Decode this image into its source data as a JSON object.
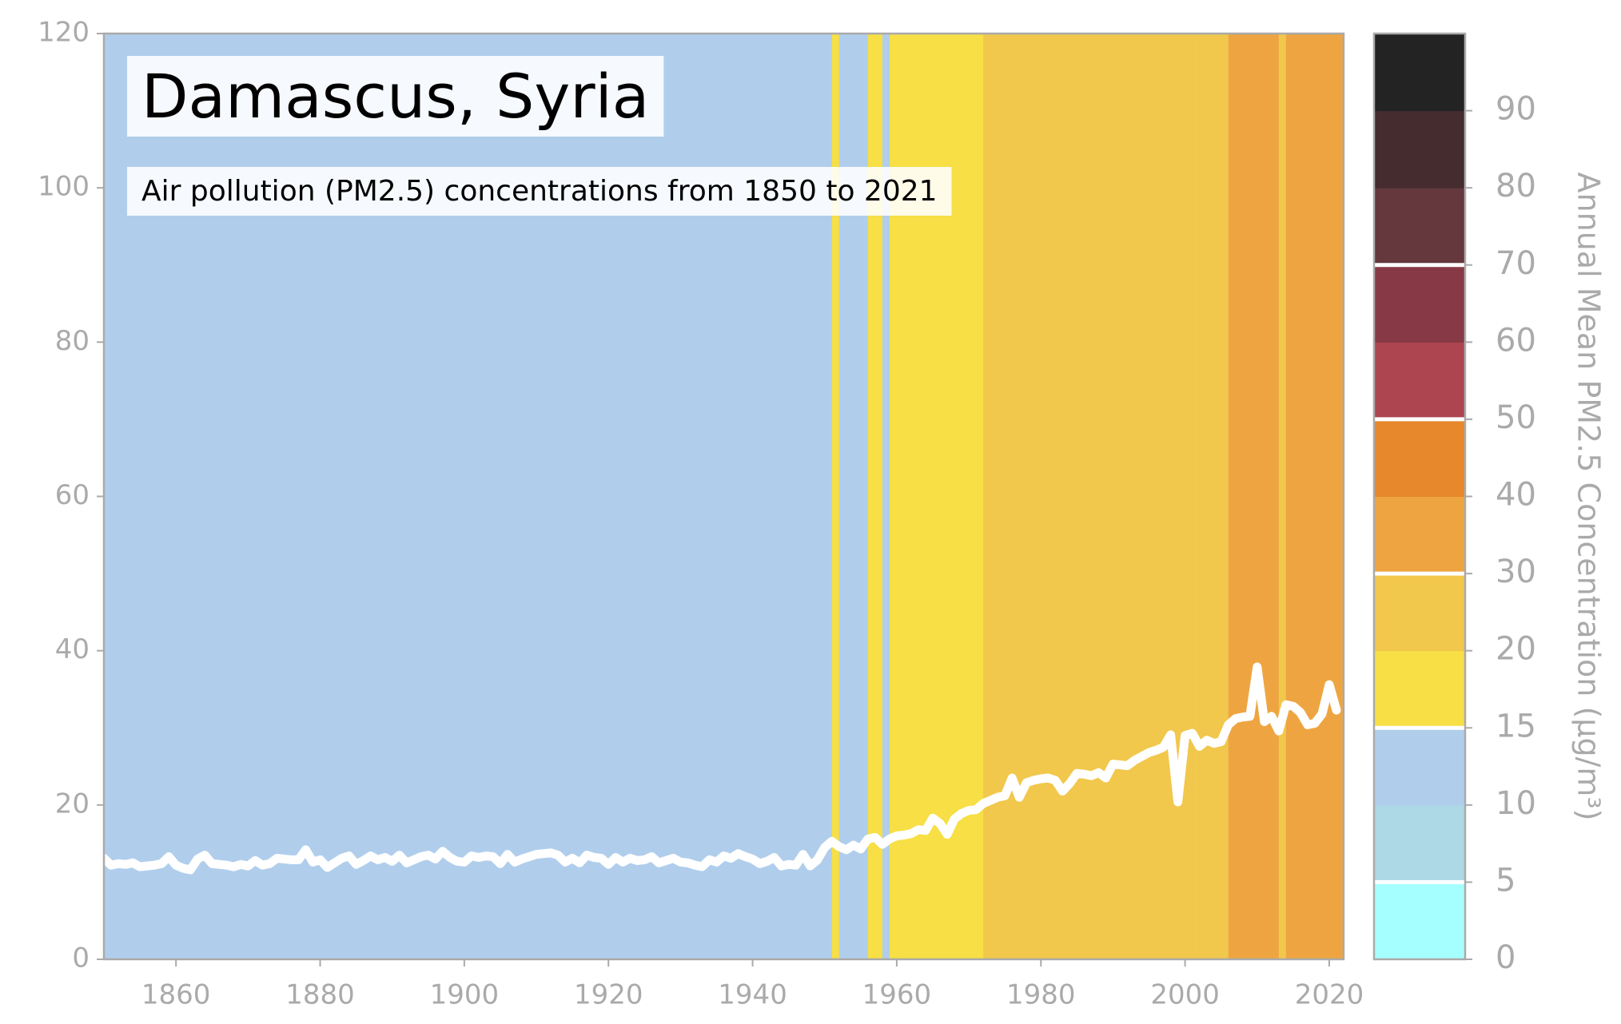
{
  "chart_data": {
    "type": "climate-stripes-line",
    "title": "Damascus, Syria",
    "subtitle": "Air pollution (PM2.5) concentrations from 1850 to 2021",
    "x": [
      1850,
      1851,
      1852,
      1853,
      1854,
      1855,
      1856,
      1857,
      1858,
      1859,
      1860,
      1861,
      1862,
      1863,
      1864,
      1865,
      1866,
      1867,
      1868,
      1869,
      1870,
      1871,
      1872,
      1873,
      1874,
      1875,
      1876,
      1877,
      1878,
      1879,
      1880,
      1881,
      1882,
      1883,
      1884,
      1885,
      1886,
      1887,
      1888,
      1889,
      1890,
      1891,
      1892,
      1893,
      1894,
      1895,
      1896,
      1897,
      1898,
      1899,
      1900,
      1901,
      1902,
      1903,
      1904,
      1905,
      1906,
      1907,
      1908,
      1909,
      1910,
      1911,
      1912,
      1913,
      1914,
      1915,
      1916,
      1917,
      1918,
      1919,
      1920,
      1921,
      1922,
      1923,
      1924,
      1925,
      1926,
      1927,
      1928,
      1929,
      1930,
      1931,
      1932,
      1933,
      1934,
      1935,
      1936,
      1937,
      1938,
      1939,
      1940,
      1941,
      1942,
      1943,
      1944,
      1945,
      1946,
      1947,
      1948,
      1949,
      1950,
      1951,
      1952,
      1953,
      1954,
      1955,
      1956,
      1957,
      1958,
      1959,
      1960,
      1961,
      1962,
      1963,
      1964,
      1965,
      1966,
      1967,
      1968,
      1969,
      1970,
      1971,
      1972,
      1973,
      1974,
      1975,
      1976,
      1977,
      1978,
      1979,
      1980,
      1981,
      1982,
      1983,
      1984,
      1985,
      1986,
      1987,
      1988,
      1989,
      1990,
      1991,
      1992,
      1993,
      1994,
      1995,
      1996,
      1997,
      1998,
      1999,
      2000,
      2001,
      2002,
      2003,
      2004,
      2005,
      2006,
      2007,
      2008,
      2009,
      2010,
      2011,
      2012,
      2013,
      2014,
      2015,
      2016,
      2017,
      2018,
      2019,
      2020,
      2021
    ],
    "values": [
      13.1,
      12.2,
      12.4,
      12.3,
      12.5,
      12.0,
      12.1,
      12.2,
      12.4,
      13.3,
      12.2,
      11.8,
      11.6,
      13.0,
      13.5,
      12.4,
      12.3,
      12.2,
      12.0,
      12.3,
      12.1,
      12.8,
      12.2,
      12.4,
      13.1,
      13.0,
      12.9,
      12.9,
      14.2,
      12.6,
      12.9,
      11.9,
      12.5,
      13.1,
      13.4,
      12.3,
      12.8,
      13.4,
      12.9,
      13.2,
      12.7,
      13.5,
      12.5,
      12.9,
      13.3,
      13.5,
      13.0,
      14.0,
      13.2,
      12.7,
      12.6,
      13.4,
      13.2,
      13.4,
      13.3,
      12.4,
      13.6,
      12.6,
      13.0,
      13.3,
      13.6,
      13.7,
      13.8,
      13.5,
      12.6,
      13.1,
      12.5,
      13.5,
      13.2,
      13.1,
      12.3,
      13.2,
      12.6,
      13.1,
      12.8,
      12.9,
      13.3,
      12.5,
      12.8,
      13.1,
      12.6,
      12.5,
      12.2,
      12.0,
      12.9,
      12.6,
      13.4,
      13.1,
      13.7,
      13.3,
      13.0,
      12.4,
      12.7,
      13.2,
      12.1,
      12.3,
      12.2,
      13.6,
      12.1,
      12.9,
      14.5,
      15.3,
      14.6,
      14.2,
      14.8,
      14.3,
      15.6,
      15.8,
      14.9,
      15.6,
      16.0,
      16.1,
      16.3,
      16.8,
      16.7,
      18.3,
      17.6,
      16.2,
      18.2,
      18.9,
      19.3,
      19.4,
      20.2,
      20.6,
      21.0,
      21.2,
      23.5,
      21.0,
      22.9,
      23.2,
      23.4,
      23.5,
      23.2,
      21.8,
      22.8,
      24.1,
      24.0,
      23.8,
      24.2,
      23.5,
      25.3,
      25.2,
      25.1,
      25.8,
      26.3,
      26.8,
      27.1,
      27.5,
      29.1,
      20.4,
      29.0,
      29.3,
      27.6,
      28.4,
      28.0,
      28.2,
      30.4,
      31.2,
      31.4,
      31.5,
      37.9,
      30.8,
      31.5,
      29.6,
      33.0,
      32.8,
      32.0,
      30.4,
      30.6,
      31.8,
      35.6,
      32.3
    ],
    "color": "#ffffff",
    "xlim": [
      1850,
      2022
    ],
    "xticks": [
      1860,
      1880,
      1900,
      1920,
      1940,
      1960,
      1980,
      2000,
      2020
    ],
    "ylim": [
      0,
      120
    ],
    "yticks": [
      0,
      20,
      40,
      60,
      80,
      100,
      120
    ],
    "colorbar": {
      "label": "Annual Mean PM2.5 Concentration (μg/m³)",
      "bounds": [
        0,
        5,
        10,
        15,
        20,
        30,
        40,
        50,
        60,
        70,
        80,
        90,
        100
      ],
      "colors": [
        "#a6ffff",
        "#add8e6",
        "#b0ceec",
        "#f7df45",
        "#f1c74c",
        "#eea541",
        "#e6882b",
        "#ac4550",
        "#873a45",
        "#64383c",
        "#442c2f",
        "#232323"
      ],
      "ticks": [
        0,
        5,
        10,
        15,
        20,
        30,
        40,
        50,
        60,
        70,
        80,
        90
      ],
      "lines": [
        5,
        15,
        30,
        50,
        70
      ]
    }
  }
}
